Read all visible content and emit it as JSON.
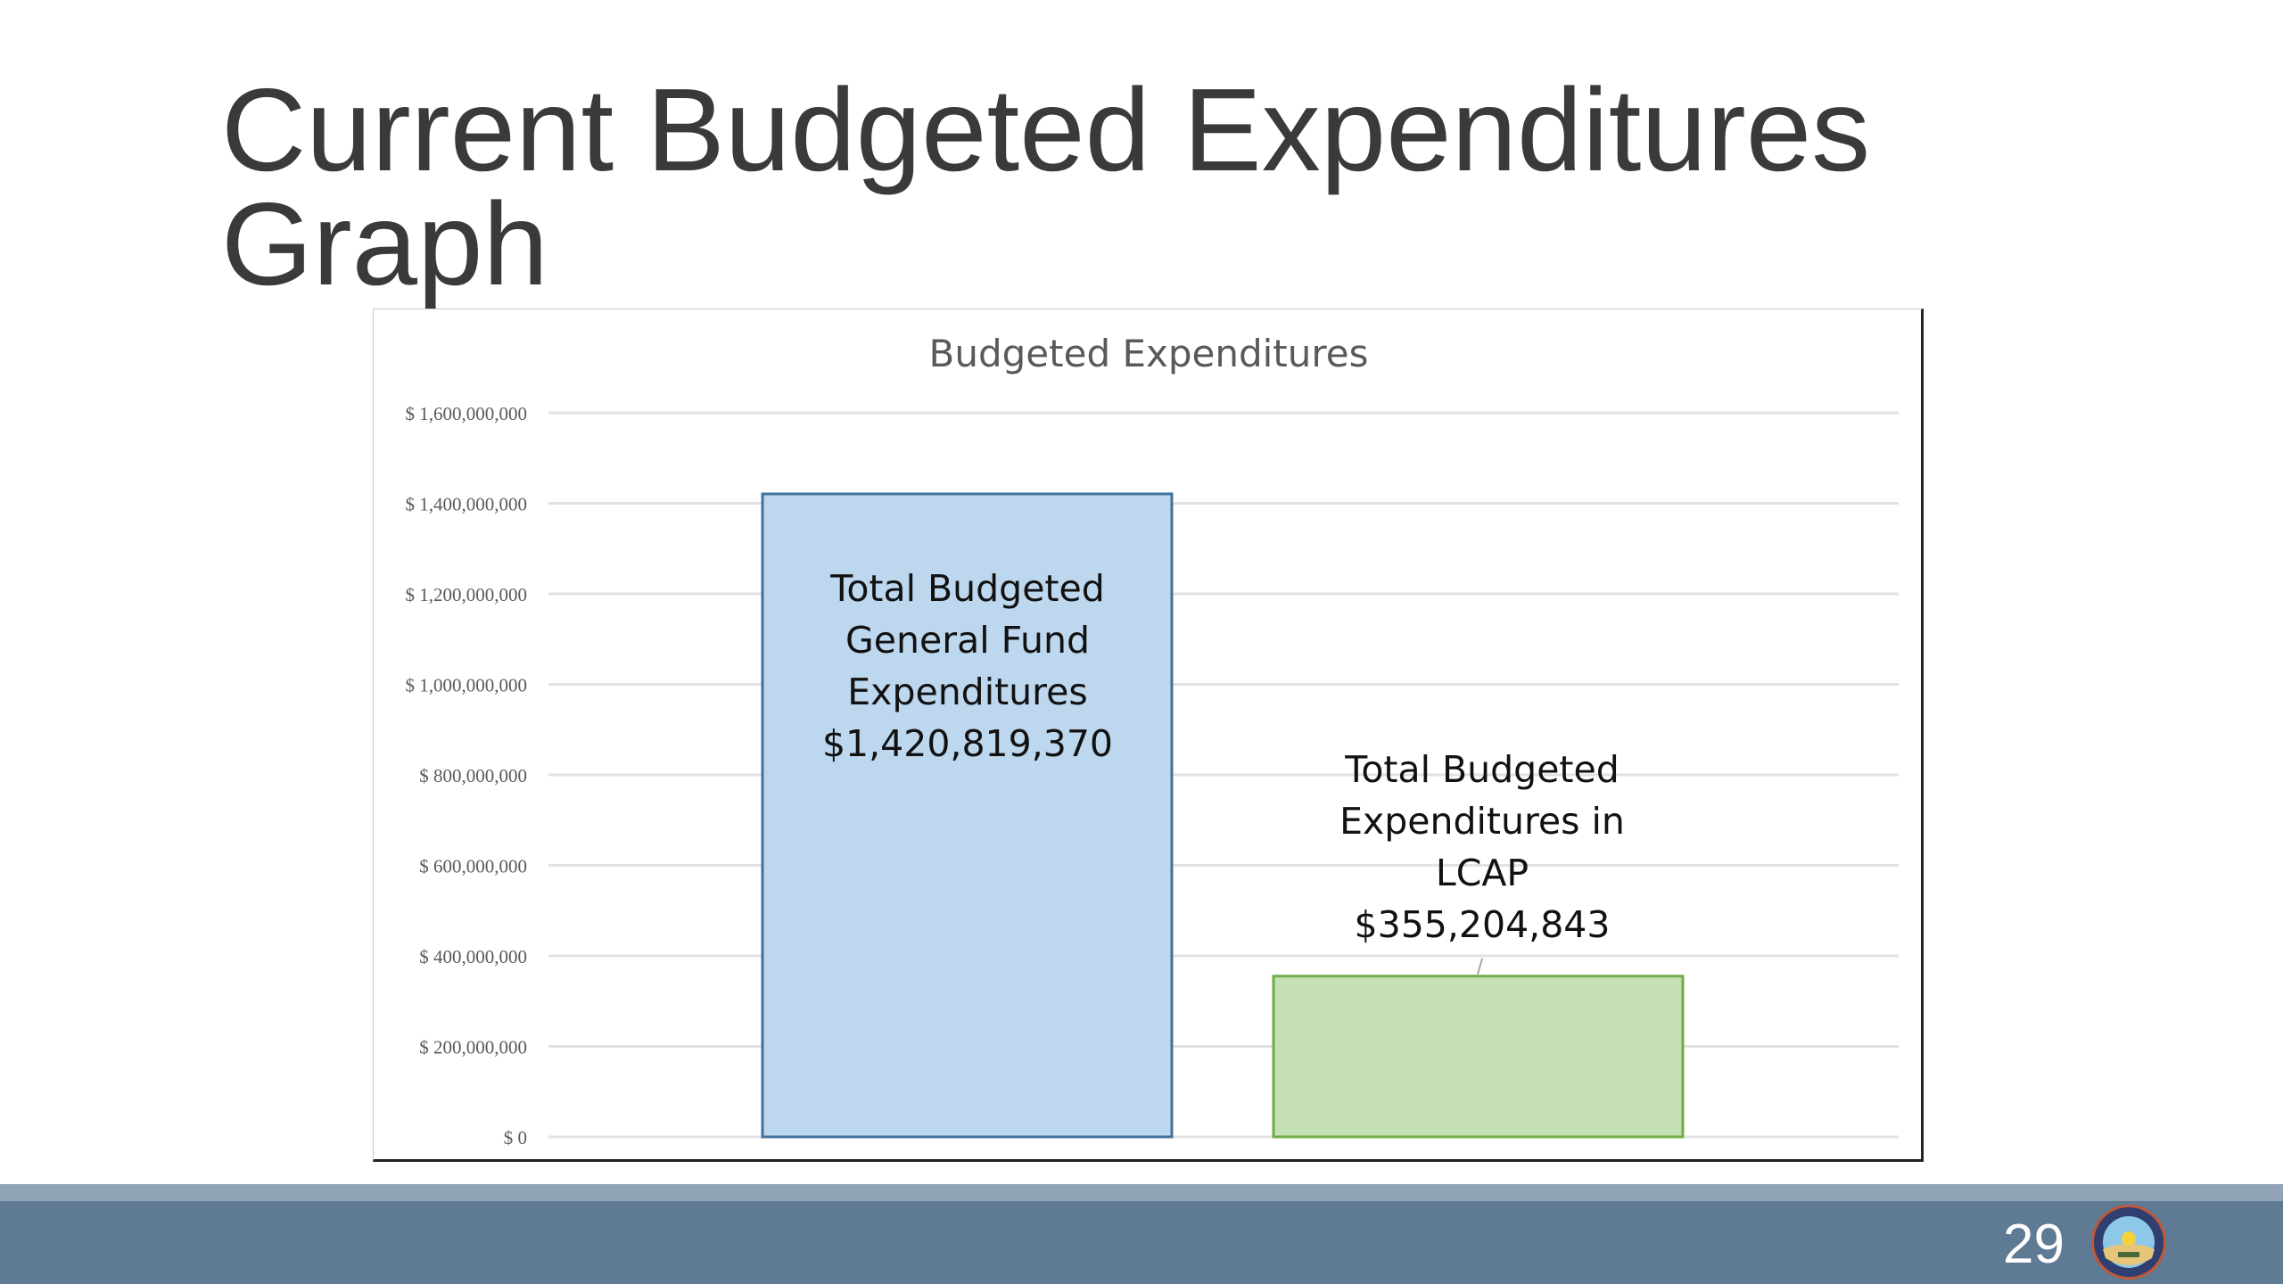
{
  "slide": {
    "title_line1": "Current Budgeted Expenditures",
    "title_line2": "Graph",
    "page_number": "29",
    "logo_text": "Department of Education State of California"
  },
  "colors": {
    "bar_general_fund": "#bdd7ee",
    "bar_general_fund_border": "#41719c",
    "bar_lcap": "#c5e0b4",
    "bar_lcap_border": "#70ad47",
    "footer": "#5f7b94"
  },
  "chart_data": {
    "type": "bar",
    "title": "Budgeted Expenditures",
    "categories": [
      "Total Budgeted General Fund Expenditures",
      "Total Budgeted Expenditures in LCAP"
    ],
    "values": [
      1420819370,
      355204843
    ],
    "data_labels": [
      [
        "Total Budgeted",
        "General Fund",
        "Expenditures",
        "$1,420,819,370"
      ],
      [
        "Total Budgeted",
        "Expenditures in",
        "LCAP",
        "$355,204,843"
      ]
    ],
    "ylim": [
      0,
      1600000000
    ],
    "yticks": [
      0,
      200000000,
      400000000,
      600000000,
      800000000,
      1000000000,
      1200000000,
      1400000000,
      1600000000
    ],
    "ytick_labels": [
      "$ 0",
      "$ 200,000,000",
      "$ 400,000,000",
      "$ 600,000,000",
      "$ 800,000,000",
      "$ 1,000,000,000",
      "$ 1,200,000,000",
      "$ 1,400,000,000",
      "$ 1,600,000,000"
    ],
    "grid": true,
    "legend": "none"
  }
}
